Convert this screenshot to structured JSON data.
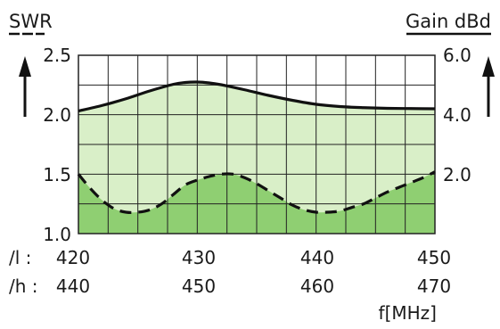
{
  "chart_data": {
    "type": "line",
    "left_axis": {
      "title": "SWR",
      "ylim": [
        1.0,
        2.5
      ],
      "tick_labels": [
        "2.5",
        "2.0",
        "1.5",
        "1.0"
      ],
      "tick_values": [
        2.5,
        2.0,
        1.5,
        1.0
      ]
    },
    "right_axis": {
      "title": "Gain dBd",
      "ylim": [
        -2.0,
        6.0
      ],
      "tick_labels": [
        "6.0",
        "4.0",
        "2.0"
      ],
      "tick_values": [
        6.0,
        4.0,
        2.0
      ]
    },
    "x_axis": {
      "xlim": [
        420,
        450
      ],
      "unit_label": "f[MHz]",
      "rows": [
        {
          "prefix": "/l :",
          "labels": [
            "420",
            "430",
            "440",
            "450"
          ],
          "values": [
            420,
            430,
            440,
            450
          ]
        },
        {
          "prefix": "/h :",
          "labels": [
            "440",
            "450",
            "460",
            "470"
          ],
          "values": [
            420,
            430,
            440,
            450
          ]
        }
      ]
    },
    "grid": true,
    "series": [
      {
        "axis": "right",
        "style": "solid",
        "x": [
          420,
          422,
          424,
          426,
          428,
          429,
          430,
          431,
          432,
          434,
          436,
          438,
          440,
          442,
          444,
          446,
          448,
          450
        ],
        "y": [
          3.5,
          3.75,
          4.05,
          4.4,
          4.7,
          4.78,
          4.8,
          4.76,
          4.68,
          4.45,
          4.2,
          3.98,
          3.8,
          3.7,
          3.65,
          3.62,
          3.61,
          3.6
        ]
      },
      {
        "axis": "left",
        "style": "dashed",
        "x": [
          420,
          421,
          422,
          423,
          424,
          425,
          426,
          427,
          428,
          429,
          430,
          431,
          432,
          433,
          434,
          435,
          436,
          437,
          438,
          439,
          440,
          441,
          442,
          443,
          444,
          445,
          446,
          447,
          448,
          449,
          450
        ],
        "y": [
          1.5,
          1.38,
          1.28,
          1.21,
          1.18,
          1.18,
          1.2,
          1.25,
          1.33,
          1.41,
          1.45,
          1.48,
          1.5,
          1.5,
          1.47,
          1.42,
          1.36,
          1.3,
          1.24,
          1.2,
          1.18,
          1.18,
          1.19,
          1.22,
          1.25,
          1.3,
          1.35,
          1.39,
          1.43,
          1.47,
          1.52
        ]
      }
    ],
    "colors": {
      "background": "#ffffff",
      "fill_upper": "#d9efc8",
      "fill_lower": "#8fcf72",
      "grid": "#222222",
      "line": "#111111"
    }
  }
}
